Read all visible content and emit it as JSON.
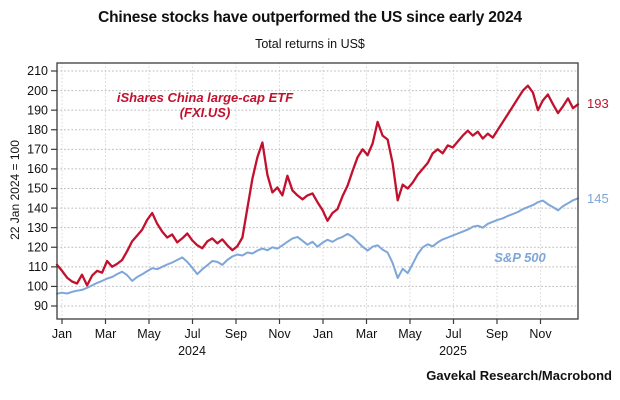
{
  "header": {
    "title": "Chinese stocks have outperformed the US since early 2024",
    "subtitle": "Total returns in US$"
  },
  "footer": {
    "attribution": "Gavekal Research/Macrobond"
  },
  "chart_data": {
    "type": "line",
    "title": "Chinese stocks have outperformed the US since early 2024",
    "subtitle": "Total returns in US$",
    "ylabel": "22 Jan 2024 = 100",
    "ylim": [
      90,
      210
    ],
    "y_ticks": [
      90,
      100,
      110,
      120,
      130,
      140,
      150,
      160,
      170,
      180,
      190,
      200,
      210
    ],
    "x_ticks": [
      "Jan",
      "Mar",
      "May",
      "Jul",
      "Sep",
      "Nov",
      "Jan",
      "Mar",
      "May",
      "Jul",
      "Sep",
      "Nov"
    ],
    "x_years": [
      {
        "label": "2024",
        "tick_index": 3
      },
      {
        "label": "2025",
        "tick_index": 9
      }
    ],
    "x_start": "Jan 2024",
    "x_end": "Dec 2025",
    "x_interval": "weekly",
    "grid": "dotted",
    "legend_position": "inline-labels",
    "frame_color": "#3c3c3c",
    "grid_color": "#b8b8b8",
    "series": [
      {
        "id": "fxi",
        "name": "iShares China large-cap ETF (FXI.US)",
        "color": "#C2112E",
        "end_label": "193",
        "line_width": 2.3,
        "values": [
          111,
          108,
          104.5,
          102.5,
          101.5,
          106,
          100.5,
          105.5,
          108,
          107,
          113,
          110,
          111.5,
          113.5,
          118,
          123,
          126,
          129,
          134,
          137.5,
          132,
          128,
          125,
          126.5,
          122.5,
          124.5,
          127,
          123.5,
          121,
          119.5,
          123,
          124.5,
          122,
          124,
          121,
          118.5,
          120.5,
          125,
          140,
          155,
          166,
          173.5,
          157,
          148,
          150.5,
          146.5,
          156.5,
          149,
          146.5,
          144.5,
          146.5,
          147.5,
          143,
          139,
          133.5,
          137.5,
          139.5,
          146,
          151.5,
          159,
          166,
          170,
          167,
          173,
          184,
          177,
          175,
          163,
          144,
          152,
          150,
          153,
          157,
          160,
          163,
          168,
          170,
          168,
          172,
          171,
          174,
          177,
          179.5,
          177,
          179,
          175.5,
          178,
          176,
          180,
          184,
          188,
          192,
          196,
          200,
          202.5,
          199,
          190,
          195,
          198,
          193,
          188.5,
          192,
          196,
          191,
          193
        ]
      },
      {
        "id": "sp500",
        "name": "S&P 500",
        "color": "#7EA6D8",
        "end_label": "145",
        "line_width": 2,
        "values": [
          96.3,
          96.8,
          96.4,
          97.2,
          97.8,
          98.2,
          99.3,
          100.5,
          101.8,
          102.8,
          104,
          104.8,
          106.3,
          107.5,
          105.8,
          102.8,
          104.8,
          106.2,
          107.8,
          109.3,
          108.8,
          110,
          111.2,
          112.2,
          113.5,
          114.8,
          112.5,
          109.5,
          106.3,
          108.8,
          110.8,
          113,
          112.5,
          111,
          113.5,
          115.3,
          116.3,
          115.8,
          117.3,
          116.8,
          118.3,
          119.3,
          118.5,
          120,
          119.3,
          121,
          122.8,
          124.5,
          125.3,
          123.3,
          121.3,
          122.8,
          120.3,
          122.3,
          123.8,
          122.8,
          124.3,
          125.3,
          126.8,
          125.3,
          122.8,
          120.3,
          118.3,
          120.3,
          121,
          118.8,
          117.3,
          112,
          104.3,
          109,
          106.8,
          111.5,
          116.5,
          120,
          121.5,
          120.5,
          122.5,
          124,
          125,
          126,
          127,
          128,
          129,
          130.5,
          131,
          130,
          132,
          133,
          134,
          134.8,
          136,
          137,
          138,
          139.5,
          140.5,
          141.5,
          143,
          143.8,
          142,
          140.5,
          138.8,
          141,
          142.5,
          144,
          145
        ]
      }
    ]
  }
}
